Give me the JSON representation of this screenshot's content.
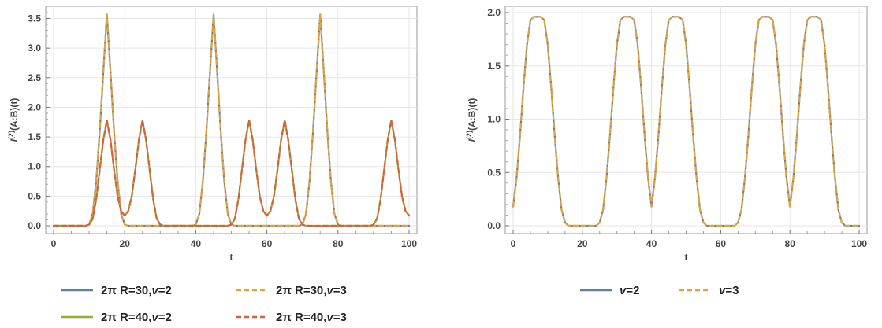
{
  "chart_data": [
    {
      "type": "line",
      "xlabel": "t",
      "ylabel": "I(2)(A:B)(t)",
      "ylabel_parts": {
        "main": "I",
        "sup": "(2)",
        "rest": "(A:B)(t)"
      },
      "xlim": [
        0,
        100
      ],
      "ylim": [
        0,
        3.6
      ],
      "xticks": [
        "0",
        "20",
        "40",
        "60",
        "80",
        "100"
      ],
      "yticks": [
        "0.0",
        "0.5",
        "1.0",
        "1.5",
        "2.0",
        "2.5",
        "3.0",
        "3.5"
      ],
      "grid": true,
      "legend_position": "bottom",
      "series": [
        {
          "name": "2π R=30,v=2",
          "name_prefix": "2π R=30,",
          "name_var": "v",
          "name_suffix": "=2",
          "color": "#5b7fb5",
          "dashed": false,
          "x": [
            0,
            9,
            10,
            11,
            12,
            13,
            14,
            15,
            16,
            17,
            18,
            19,
            20,
            21,
            39,
            40,
            41,
            42,
            43,
            44,
            45,
            46,
            47,
            48,
            49,
            50,
            51,
            69,
            70,
            71,
            72,
            73,
            74,
            75,
            76,
            77,
            78,
            79,
            80,
            81,
            100
          ],
          "y": [
            0,
            0,
            0.02,
            0.2,
            0.75,
            1.6,
            2.6,
            3.57,
            2.6,
            1.6,
            0.75,
            0.2,
            0.02,
            0,
            0,
            0.02,
            0.2,
            0.75,
            1.6,
            2.6,
            3.57,
            2.6,
            1.6,
            0.75,
            0.2,
            0.02,
            0,
            0,
            0.02,
            0.2,
            0.75,
            1.6,
            2.6,
            3.57,
            2.6,
            1.6,
            0.75,
            0.2,
            0.02,
            0,
            0
          ]
        },
        {
          "name": "2π R=30,v=3",
          "name_prefix": "2π R=30,",
          "name_var": "v",
          "name_suffix": "=3",
          "color": "#e5a23a",
          "dashed": true,
          "x": [
            0,
            9,
            10,
            11,
            12,
            13,
            14,
            15,
            16,
            17,
            18,
            19,
            20,
            21,
            39,
            40,
            41,
            42,
            43,
            44,
            45,
            46,
            47,
            48,
            49,
            50,
            51,
            69,
            70,
            71,
            72,
            73,
            74,
            75,
            76,
            77,
            78,
            79,
            80,
            81,
            100
          ],
          "y": [
            0,
            0,
            0.02,
            0.2,
            0.75,
            1.6,
            2.6,
            3.57,
            2.6,
            1.6,
            0.75,
            0.2,
            0.02,
            0,
            0,
            0.02,
            0.2,
            0.75,
            1.6,
            2.6,
            3.57,
            2.6,
            1.6,
            0.75,
            0.2,
            0.02,
            0,
            0,
            0.02,
            0.2,
            0.75,
            1.6,
            2.6,
            3.57,
            2.6,
            1.6,
            0.75,
            0.2,
            0.02,
            0,
            0
          ]
        },
        {
          "name": "2π R=40,v=2",
          "name_prefix": "2π R=40,",
          "name_var": "v",
          "name_suffix": "=2",
          "color": "#8fb032",
          "dashed": false,
          "x": [
            0,
            9,
            10,
            11,
            12,
            13,
            14,
            15,
            16,
            17,
            18,
            19,
            20,
            21,
            22,
            23,
            24,
            25,
            26,
            27,
            28,
            29,
            30,
            31,
            49,
            50,
            51,
            52,
            53,
            54,
            55,
            56,
            57,
            58,
            59,
            60,
            61,
            62,
            63,
            64,
            65,
            66,
            67,
            68,
            69,
            70,
            71,
            89,
            90,
            91,
            92,
            93,
            94,
            95,
            96,
            97,
            98,
            99,
            100
          ],
          "y": [
            0,
            0,
            0.02,
            0.12,
            0.45,
            0.95,
            1.45,
            1.78,
            1.45,
            0.95,
            0.5,
            0.25,
            0.17,
            0.25,
            0.5,
            0.95,
            1.45,
            1.78,
            1.45,
            0.95,
            0.45,
            0.12,
            0.02,
            0,
            0,
            0.02,
            0.12,
            0.45,
            0.95,
            1.45,
            1.78,
            1.45,
            0.95,
            0.5,
            0.25,
            0.17,
            0.25,
            0.5,
            0.95,
            1.45,
            1.78,
            1.45,
            0.95,
            0.45,
            0.12,
            0.02,
            0,
            0,
            0.02,
            0.12,
            0.45,
            0.95,
            1.45,
            1.78,
            1.45,
            0.95,
            0.5,
            0.25,
            0.17
          ]
        },
        {
          "name": "2π R=40,v=3",
          "name_prefix": "2π R=40,",
          "name_var": "v",
          "name_suffix": "=3",
          "color": "#d9603e",
          "dashed": true,
          "x": [
            0,
            9,
            10,
            11,
            12,
            13,
            14,
            15,
            16,
            17,
            18,
            19,
            20,
            21,
            22,
            23,
            24,
            25,
            26,
            27,
            28,
            29,
            30,
            31,
            49,
            50,
            51,
            52,
            53,
            54,
            55,
            56,
            57,
            58,
            59,
            60,
            61,
            62,
            63,
            64,
            65,
            66,
            67,
            68,
            69,
            70,
            71,
            89,
            90,
            91,
            92,
            93,
            94,
            95,
            96,
            97,
            98,
            99,
            100
          ],
          "y": [
            0,
            0,
            0.02,
            0.12,
            0.45,
            0.95,
            1.45,
            1.78,
            1.45,
            0.95,
            0.5,
            0.25,
            0.17,
            0.25,
            0.5,
            0.95,
            1.45,
            1.78,
            1.45,
            0.95,
            0.45,
            0.12,
            0.02,
            0,
            0,
            0.02,
            0.12,
            0.45,
            0.95,
            1.45,
            1.78,
            1.45,
            0.95,
            0.5,
            0.25,
            0.17,
            0.25,
            0.5,
            0.95,
            1.45,
            1.78,
            1.45,
            0.95,
            0.45,
            0.12,
            0.02,
            0,
            0,
            0.02,
            0.12,
            0.45,
            0.95,
            1.45,
            1.78,
            1.45,
            0.95,
            0.5,
            0.25,
            0.17
          ]
        }
      ]
    },
    {
      "type": "line",
      "xlabel": "t",
      "ylabel": "I(2)(A:B)(t)",
      "ylabel_parts": {
        "main": "I",
        "sup": "(2)",
        "rest": "(A:B)(t)"
      },
      "xlim": [
        0,
        100
      ],
      "ylim": [
        0,
        2.0
      ],
      "xticks": [
        "0",
        "20",
        "40",
        "60",
        "80",
        "100"
      ],
      "yticks": [
        "0.0",
        "0.5",
        "1.0",
        "1.5",
        "2.0"
      ],
      "grid": true,
      "legend_position": "bottom",
      "series": [
        {
          "name": "v=2",
          "name_prefix": "",
          "name_var": "v",
          "name_suffix": "=2",
          "color": "#5b7fb5",
          "dashed": false,
          "x": [
            0,
            1,
            2,
            3,
            4,
            5,
            6,
            7,
            8,
            9,
            10,
            11,
            12,
            13,
            14,
            15,
            16,
            24,
            25,
            26,
            27,
            28,
            29,
            30,
            31,
            32,
            33,
            34,
            35,
            36,
            37,
            38,
            39,
            40,
            41,
            42,
            43,
            44,
            45,
            46,
            47,
            48,
            49,
            50,
            51,
            52,
            53,
            54,
            55,
            56,
            64,
            65,
            66,
            67,
            68,
            69,
            70,
            71,
            72,
            73,
            74,
            75,
            76,
            77,
            78,
            79,
            80,
            81,
            82,
            83,
            84,
            85,
            86,
            87,
            88,
            89,
            90,
            91,
            92,
            93,
            94,
            95,
            96,
            100
          ],
          "y": [
            0.18,
            0.45,
            0.85,
            1.3,
            1.7,
            1.93,
            1.96,
            1.96,
            1.96,
            1.93,
            1.7,
            1.3,
            0.85,
            0.45,
            0.15,
            0.03,
            0,
            0,
            0.03,
            0.15,
            0.45,
            0.85,
            1.3,
            1.7,
            1.93,
            1.96,
            1.96,
            1.96,
            1.93,
            1.7,
            1.3,
            0.85,
            0.45,
            0.18,
            0.45,
            0.85,
            1.3,
            1.7,
            1.93,
            1.96,
            1.96,
            1.96,
            1.93,
            1.7,
            1.3,
            0.85,
            0.45,
            0.15,
            0.03,
            0,
            0,
            0.03,
            0.15,
            0.45,
            0.85,
            1.3,
            1.7,
            1.93,
            1.96,
            1.96,
            1.96,
            1.93,
            1.7,
            1.3,
            0.85,
            0.45,
            0.18,
            0.45,
            0.85,
            1.3,
            1.7,
            1.93,
            1.96,
            1.96,
            1.96,
            1.93,
            1.7,
            1.3,
            0.85,
            0.45,
            0.15,
            0.03,
            0,
            0
          ]
        },
        {
          "name": "v=3",
          "name_prefix": "",
          "name_var": "v",
          "name_suffix": "=3",
          "color": "#e5a23a",
          "dashed": true,
          "x": [
            0,
            1,
            2,
            3,
            4,
            5,
            6,
            7,
            8,
            9,
            10,
            11,
            12,
            13,
            14,
            15,
            16,
            24,
            25,
            26,
            27,
            28,
            29,
            30,
            31,
            32,
            33,
            34,
            35,
            36,
            37,
            38,
            39,
            40,
            41,
            42,
            43,
            44,
            45,
            46,
            47,
            48,
            49,
            50,
            51,
            52,
            53,
            54,
            55,
            56,
            64,
            65,
            66,
            67,
            68,
            69,
            70,
            71,
            72,
            73,
            74,
            75,
            76,
            77,
            78,
            79,
            80,
            81,
            82,
            83,
            84,
            85,
            86,
            87,
            88,
            89,
            90,
            91,
            92,
            93,
            94,
            95,
            96,
            100
          ],
          "y": [
            0.18,
            0.45,
            0.85,
            1.3,
            1.7,
            1.93,
            1.96,
            1.96,
            1.96,
            1.93,
            1.7,
            1.3,
            0.85,
            0.45,
            0.15,
            0.03,
            0,
            0,
            0.03,
            0.15,
            0.45,
            0.85,
            1.3,
            1.7,
            1.93,
            1.96,
            1.96,
            1.96,
            1.93,
            1.7,
            1.3,
            0.85,
            0.45,
            0.18,
            0.45,
            0.85,
            1.3,
            1.7,
            1.93,
            1.96,
            1.96,
            1.96,
            1.93,
            1.7,
            1.3,
            0.85,
            0.45,
            0.15,
            0.03,
            0,
            0,
            0.03,
            0.15,
            0.45,
            0.85,
            1.3,
            1.7,
            1.93,
            1.96,
            1.96,
            1.96,
            1.93,
            1.7,
            1.3,
            0.85,
            0.45,
            0.18,
            0.45,
            0.85,
            1.3,
            1.7,
            1.93,
            1.96,
            1.96,
            1.96,
            1.93,
            1.7,
            1.3,
            0.85,
            0.45,
            0.15,
            0.03,
            0,
            0
          ]
        }
      ]
    }
  ]
}
